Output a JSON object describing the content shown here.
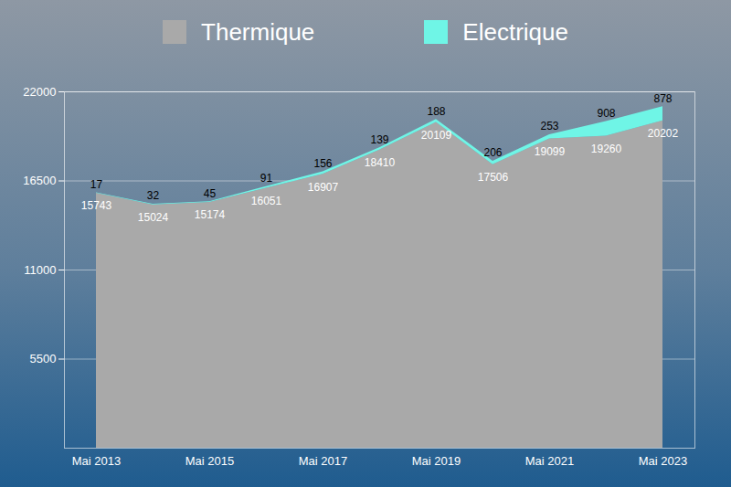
{
  "chart_data": {
    "type": "area",
    "stacked": true,
    "data_labels": true,
    "grid": true,
    "legend": "top",
    "categories": [
      "Mai 2013",
      null,
      "Mai 2015",
      null,
      "Mai 2017",
      null,
      "Mai 2019",
      null,
      "Mai 2021",
      null,
      "Mai 2023"
    ],
    "ylim": [
      0,
      22000
    ],
    "yticks": [
      5500,
      11000,
      16500,
      22000
    ],
    "series": [
      {
        "name": "Thermique",
        "color": "#a9a9a9",
        "values": [
          15743,
          15024,
          15174,
          16051,
          16907,
          18410,
          20109,
          17506,
          19099,
          19260,
          20202
        ]
      },
      {
        "name": "Electrique",
        "color": "#6ff5e6",
        "values": [
          17,
          32,
          45,
          91,
          156,
          139,
          188,
          206,
          253,
          908,
          878
        ]
      }
    ]
  }
}
